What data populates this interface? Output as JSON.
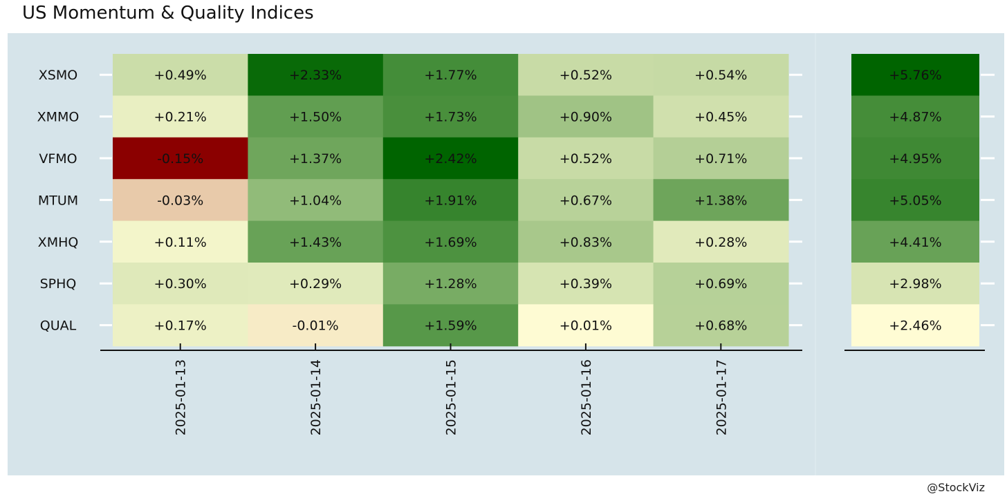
{
  "title": "US Momentum & Quality Indices",
  "credit": "@StockViz",
  "colors": {
    "panel_background": "#d6e4ea",
    "scale_negative": "#8b0000",
    "scale_zero": "#fffcd4",
    "scale_positive": "#006400"
  },
  "chart_data": [
    {
      "type": "heatmap",
      "title": "US Momentum & Quality Indices",
      "rows": [
        "XSMO",
        "XMMO",
        "VFMO",
        "MTUM",
        "XMHQ",
        "SPHQ",
        "QUAL"
      ],
      "columns": [
        "2025-01-13",
        "2025-01-14",
        "2025-01-15",
        "2025-01-16",
        "2025-01-17"
      ],
      "values": [
        [
          0.49,
          2.33,
          1.77,
          0.52,
          0.54
        ],
        [
          0.21,
          1.5,
          1.73,
          0.9,
          0.45
        ],
        [
          -0.15,
          1.37,
          2.42,
          0.52,
          0.71
        ],
        [
          -0.03,
          1.04,
          1.91,
          0.67,
          1.38
        ],
        [
          0.11,
          1.43,
          1.69,
          0.83,
          0.28
        ],
        [
          0.3,
          0.29,
          1.28,
          0.39,
          0.69
        ],
        [
          0.17,
          -0.01,
          1.59,
          0.01,
          0.68
        ]
      ],
      "labels": [
        [
          "+0.49%",
          "+2.33%",
          "+1.77%",
          "+0.52%",
          "+0.54%"
        ],
        [
          "+0.21%",
          "+1.50%",
          "+1.73%",
          "+0.90%",
          "+0.45%"
        ],
        [
          "-0.15%",
          "+1.37%",
          "+2.42%",
          "+0.52%",
          "+0.71%"
        ],
        [
          "-0.03%",
          "+1.04%",
          "+1.91%",
          "+0.67%",
          "+1.38%"
        ],
        [
          "+0.11%",
          "+1.43%",
          "+1.69%",
          "+0.83%",
          "+0.28%"
        ],
        [
          "+0.30%",
          "+0.29%",
          "+1.28%",
          "+0.39%",
          "+0.69%"
        ],
        [
          "+0.17%",
          "-0.01%",
          "+1.59%",
          "+0.01%",
          "+0.68%"
        ]
      ],
      "grid": false,
      "legend": "none"
    },
    {
      "type": "heatmap",
      "rows": [
        "XSMO",
        "XMMO",
        "VFMO",
        "MTUM",
        "XMHQ",
        "SPHQ",
        "QUAL"
      ],
      "values": [
        5.76,
        4.87,
        4.95,
        5.05,
        4.41,
        2.98,
        2.46
      ],
      "labels": [
        "+5.76%",
        "+4.87%",
        "+4.95%",
        "+5.05%",
        "+4.41%",
        "+2.98%",
        "+2.46%"
      ],
      "grid": false,
      "legend": "none"
    }
  ]
}
